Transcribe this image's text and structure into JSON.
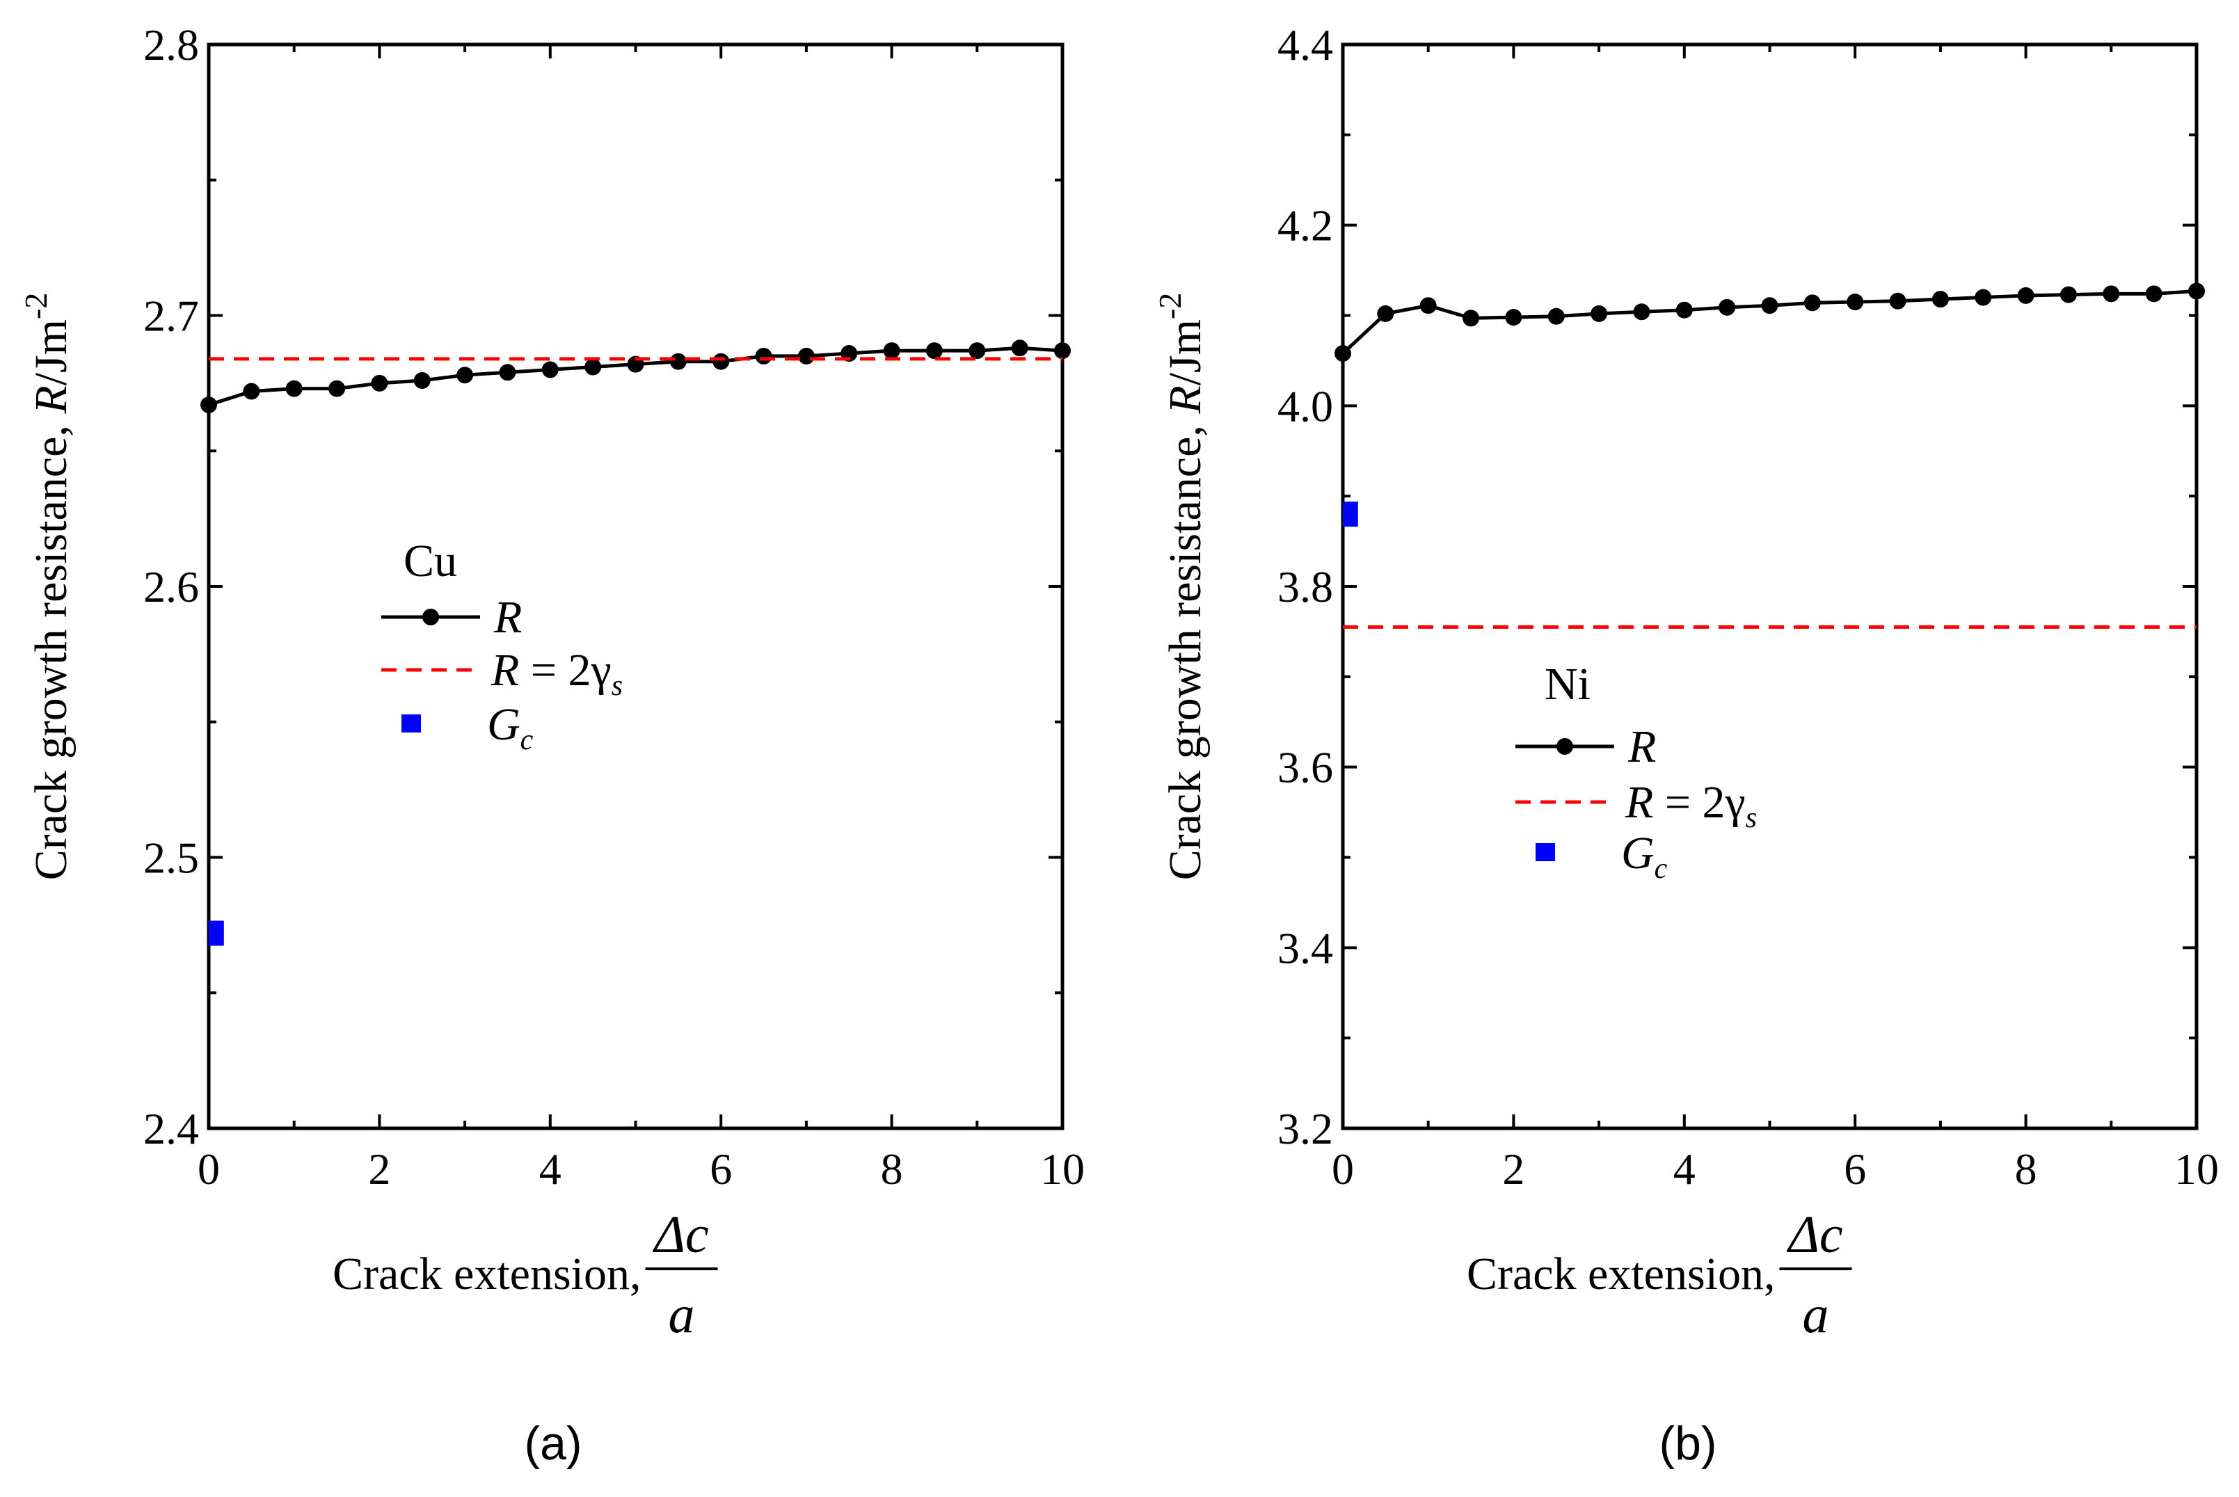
{
  "chart_data": [
    {
      "type": "line",
      "panel": "(a)",
      "material": "Cu",
      "xlabel_text": "Crack extension,",
      "xlabel_num": "Δc",
      "xlabel_den": "a",
      "ylabel_text": "Crack growth resistance,",
      "ylabel_sym": "R",
      "ylabel_unit": "/Jm",
      "ylabel_exp": "-2",
      "xlim": [
        0,
        10
      ],
      "ylim": [
        2.4,
        2.8
      ],
      "xticks": [
        "0",
        "2",
        "4",
        "6",
        "8",
        "10"
      ],
      "yticks": [
        "2.4",
        "2.5",
        "2.6",
        "2.7",
        "2.8"
      ],
      "series": [
        {
          "name": "R",
          "style": "line-markers",
          "color": "#000000",
          "x": [
            0,
            0.5,
            1,
            1.5,
            2,
            2.5,
            3,
            3.5,
            4,
            4.5,
            5,
            5.5,
            6,
            6.5,
            7,
            7.5,
            8,
            8.5,
            9,
            9.5,
            10
          ],
          "y": [
            2.667,
            2.672,
            2.673,
            2.673,
            2.675,
            2.676,
            2.678,
            2.679,
            2.68,
            2.681,
            2.682,
            2.683,
            2.683,
            2.685,
            2.685,
            2.686,
            2.687,
            2.687,
            2.687,
            2.688,
            2.687
          ]
        },
        {
          "name": "R = 2γs",
          "style": "dashed",
          "color": "#ff0000",
          "y": 2.684
        },
        {
          "name": "Gc",
          "style": "square",
          "color": "#0000ff",
          "x": 0.08,
          "y": 2.472
        }
      ],
      "legend": {
        "title": "Cu",
        "r_label": "R",
        "eq_left": "R",
        "eq_mid": " = 2γ",
        "eq_sub": "s",
        "gc_main": "G",
        "gc_sub": "c"
      }
    },
    {
      "type": "line",
      "panel": "(b)",
      "material": "Ni",
      "xlabel_text": "Crack extension,",
      "xlabel_num": "Δc",
      "xlabel_den": "a",
      "ylabel_text": "Crack growth resistance,",
      "ylabel_sym": "R",
      "ylabel_unit": "/Jm",
      "ylabel_exp": "-2",
      "xlim": [
        0,
        10
      ],
      "ylim": [
        3.2,
        4.4
      ],
      "xticks": [
        "0",
        "2",
        "4",
        "6",
        "8",
        "10"
      ],
      "yticks": [
        "3.2",
        "3.4",
        "3.6",
        "3.8",
        "4.0",
        "4.2",
        "4.4"
      ],
      "series": [
        {
          "name": "R",
          "style": "line-markers",
          "color": "#000000",
          "x": [
            0,
            0.5,
            1,
            1.5,
            2,
            2.5,
            3,
            3.5,
            4,
            4.5,
            5,
            5.5,
            6,
            6.5,
            7,
            7.5,
            8,
            8.5,
            9,
            9.5,
            10
          ],
          "y": [
            4.058,
            4.102,
            4.111,
            4.097,
            4.098,
            4.099,
            4.102,
            4.104,
            4.106,
            4.109,
            4.111,
            4.114,
            4.115,
            4.116,
            4.118,
            4.12,
            4.122,
            4.123,
            4.124,
            4.124,
            4.127
          ]
        },
        {
          "name": "R = 2γs",
          "style": "dashed",
          "color": "#ff0000",
          "y": 3.755
        },
        {
          "name": "Gc",
          "style": "square",
          "color": "#0000ff",
          "x": 0.08,
          "y": 3.88
        }
      ],
      "legend": {
        "title": "Ni",
        "r_label": "R",
        "eq_left": "R",
        "eq_mid": " = 2γ",
        "eq_sub": "s",
        "gc_main": "G",
        "gc_sub": "c"
      }
    }
  ]
}
